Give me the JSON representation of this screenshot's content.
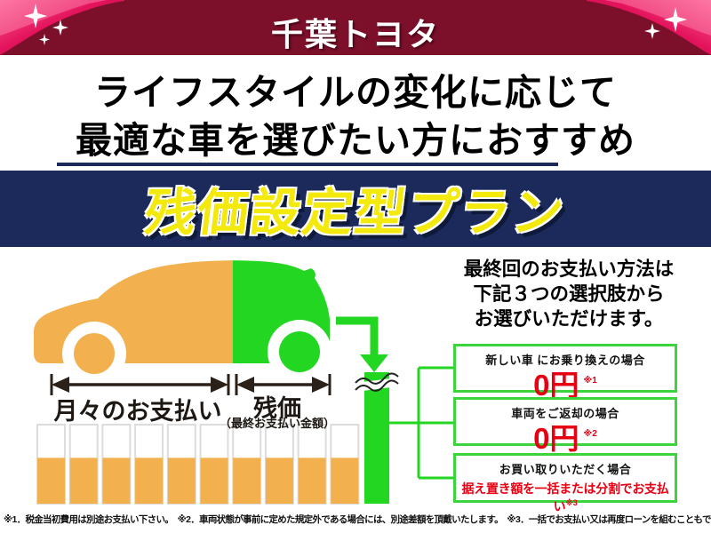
{
  "header": {
    "logo": "千葉トヨタ"
  },
  "headline": {
    "line1": "ライフスタイルの変化に応じて",
    "line2": "最適な車を選びたい方におすすめ"
  },
  "banner": {
    "title": "残価設定型プラン",
    "bg_color": "#1b2a5a",
    "text_color": "#f3e90c"
  },
  "diagram": {
    "labels": {
      "monthly": "月々のお支払い",
      "residual": "残価",
      "residual_sub": "（最終お支払い金額）"
    },
    "bars": {
      "count": 10,
      "fill_percent": 58,
      "color": "#F2B04F"
    },
    "colors": {
      "maroon": "#7c102b",
      "orange": "#F2B04F",
      "green": "#22D622",
      "arrow_dark": "#2b2118",
      "box_border_green": "#3cd43c",
      "price_red": "#e60012"
    }
  },
  "options": {
    "intro_lines": [
      "最終回のお支払い方法は",
      "下記３つの選択肢から",
      "お選びいただけます。"
    ],
    "items": [
      {
        "title": "新しい車 にお乗り換えの場合",
        "price": "0円",
        "note": "※1"
      },
      {
        "title": "車両をご返却の場合",
        "price": "0円",
        "note": "※2"
      },
      {
        "title": "お買い取りいただく場合",
        "detail": "据え置き額を一括または分割でお支払い",
        "note": "※3"
      }
    ]
  },
  "footnotes": {
    "text": "※1．税金当初費用は別途お支払い下さい。　※2．車両状態が事前に定めた規定外である場合には、別途差額を頂戴いたします。　※3．一括でお支払い又は再度ローンを組むこともできます。"
  }
}
